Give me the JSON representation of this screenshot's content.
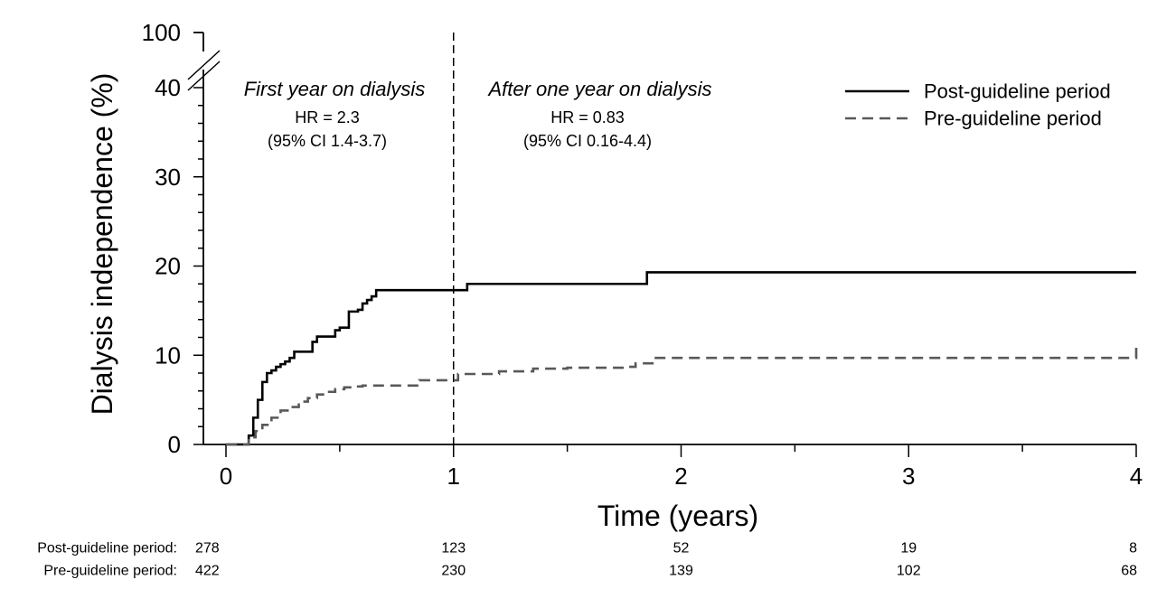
{
  "chart_data": {
    "type": "line",
    "title": "",
    "xlabel": "Time (years)",
    "ylabel": "Dialysis independence (%)",
    "xlim": [
      0,
      4
    ],
    "ylim": [
      0,
      40
    ],
    "y_break_top_label": "100",
    "x_ticks": [
      "0",
      "1",
      "2",
      "3",
      "4"
    ],
    "y_ticks": [
      "0",
      "10",
      "20",
      "30",
      "40"
    ],
    "legend": {
      "position": "top-right"
    },
    "colors": {
      "post": "#000000",
      "pre": "#595959",
      "divider": "#000000"
    },
    "series": [
      {
        "name": "Post-guideline period",
        "style": "solid",
        "color": "#000000",
        "x": [
          0,
          0.08,
          0.1,
          0.12,
          0.14,
          0.16,
          0.18,
          0.2,
          0.22,
          0.24,
          0.26,
          0.28,
          0.3,
          0.34,
          0.38,
          0.4,
          0.42,
          0.44,
          0.48,
          0.5,
          0.52,
          0.54,
          0.58,
          0.6,
          0.62,
          0.64,
          0.66,
          0.7,
          1.0,
          1.06,
          1.85,
          4.0
        ],
        "values": [
          0,
          0,
          1.0,
          3.0,
          5.0,
          7.0,
          8.0,
          8.3,
          8.7,
          9.0,
          9.3,
          9.7,
          10.4,
          10.4,
          11.5,
          12.1,
          12.1,
          12.1,
          12.8,
          13.1,
          13.1,
          14.9,
          15.1,
          15.8,
          16.2,
          16.6,
          17.3,
          17.3,
          17.3,
          18.0,
          19.3,
          19.3
        ]
      },
      {
        "name": "Pre-guideline period",
        "style": "dashed",
        "color": "#595959",
        "x": [
          0,
          0.07,
          0.1,
          0.13,
          0.16,
          0.2,
          0.24,
          0.28,
          0.32,
          0.36,
          0.4,
          0.44,
          0.48,
          0.52,
          0.56,
          0.6,
          0.65,
          0.8,
          0.85,
          1.0,
          1.02,
          1.2,
          1.35,
          1.5,
          1.75,
          1.8,
          1.88,
          3.95,
          4.0
        ],
        "values": [
          0,
          0,
          0.8,
          1.5,
          2.2,
          3.0,
          3.8,
          4.2,
          4.8,
          5.2,
          5.6,
          5.9,
          6.2,
          6.4,
          6.5,
          6.6,
          6.6,
          6.6,
          7.2,
          7.2,
          7.9,
          8.2,
          8.5,
          8.6,
          8.7,
          9.1,
          9.7,
          9.7,
          11.0
        ]
      }
    ],
    "annotations": {
      "divider_x": 1,
      "left_period": "First year on dialysis",
      "left_hr": "HR = 2.3",
      "left_ci": "(95% CI 1.4-3.7)",
      "right_period": "After one year on dialysis",
      "right_hr": "HR = 0.83",
      "right_ci": "(95% CI 0.16-4.4)"
    },
    "risk_table": {
      "times": [
        0,
        1,
        2,
        3,
        4
      ],
      "rows": [
        {
          "label": "Post-guideline period:",
          "values": [
            "278",
            "123",
            "52",
            "19",
            "8"
          ]
        },
        {
          "label": "Pre-guideline period:",
          "values": [
            "422",
            "230",
            "139",
            "102",
            "68"
          ]
        }
      ]
    }
  }
}
